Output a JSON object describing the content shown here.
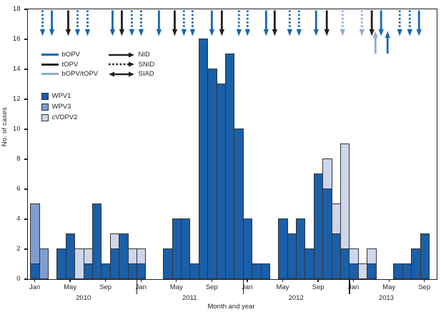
{
  "chart_data": {
    "type": "bar",
    "stacked": true,
    "xlabel": "Month and year",
    "ylabel": "No. of cases",
    "ylim": [
      0,
      18
    ],
    "ytick_interval": 2,
    "xtick_months": [
      "Jan",
      "May",
      "Sep"
    ],
    "years": [
      "2010",
      "2011",
      "2012",
      "2013"
    ],
    "series": [
      {
        "name": "WPV1",
        "key": "WPV1",
        "color": "#1a5fa8"
      },
      {
        "name": "WPV3",
        "key": "WPV3",
        "color": "#7f9dd1"
      },
      {
        "name": "cVDPV2",
        "key": "cVDPV2",
        "color": "#cdd6eb"
      }
    ],
    "values": [
      {
        "year": 2010,
        "month": "Jan",
        "WPV1": 1,
        "WPV3": 4,
        "cVDPV2": 0
      },
      {
        "year": 2010,
        "month": "Feb",
        "WPV1": 0,
        "WPV3": 2,
        "cVDPV2": 0
      },
      {
        "year": 2010,
        "month": "Mar",
        "WPV1": 0,
        "WPV3": 0,
        "cVDPV2": 0
      },
      {
        "year": 2010,
        "month": "Apr",
        "WPV1": 2,
        "WPV3": 0,
        "cVDPV2": 0
      },
      {
        "year": 2010,
        "month": "May",
        "WPV1": 3,
        "WPV3": 0,
        "cVDPV2": 0
      },
      {
        "year": 2010,
        "month": "Jun",
        "WPV1": 0,
        "WPV3": 0,
        "cVDPV2": 2
      },
      {
        "year": 2010,
        "month": "Jul",
        "WPV1": 1,
        "WPV3": 0,
        "cVDPV2": 1
      },
      {
        "year": 2010,
        "month": "Aug",
        "WPV1": 5,
        "WPV3": 0,
        "cVDPV2": 0
      },
      {
        "year": 2010,
        "month": "Sep",
        "WPV1": 1,
        "WPV3": 0,
        "cVDPV2": 0
      },
      {
        "year": 2010,
        "month": "Oct",
        "WPV1": 2,
        "WPV3": 0,
        "cVDPV2": 1
      },
      {
        "year": 2010,
        "month": "Nov",
        "WPV1": 3,
        "WPV3": 0,
        "cVDPV2": 0
      },
      {
        "year": 2010,
        "month": "Dec",
        "WPV1": 1,
        "WPV3": 0,
        "cVDPV2": 1
      },
      {
        "year": 2011,
        "month": "Jan",
        "WPV1": 1,
        "WPV3": 0,
        "cVDPV2": 1
      },
      {
        "year": 2011,
        "month": "Feb",
        "WPV1": 0,
        "WPV3": 0,
        "cVDPV2": 0
      },
      {
        "year": 2011,
        "month": "Mar",
        "WPV1": 0,
        "WPV3": 0,
        "cVDPV2": 0
      },
      {
        "year": 2011,
        "month": "Apr",
        "WPV1": 2,
        "WPV3": 0,
        "cVDPV2": 0
      },
      {
        "year": 2011,
        "month": "May",
        "WPV1": 4,
        "WPV3": 0,
        "cVDPV2": 0
      },
      {
        "year": 2011,
        "month": "Jun",
        "WPV1": 4,
        "WPV3": 0,
        "cVDPV2": 0
      },
      {
        "year": 2011,
        "month": "Jul",
        "WPV1": 1,
        "WPV3": 0,
        "cVDPV2": 0
      },
      {
        "year": 2011,
        "month": "Aug",
        "WPV1": 16,
        "WPV3": 0,
        "cVDPV2": 0
      },
      {
        "year": 2011,
        "month": "Sep",
        "WPV1": 14,
        "WPV3": 0,
        "cVDPV2": 0
      },
      {
        "year": 2011,
        "month": "Oct",
        "WPV1": 13,
        "WPV3": 0,
        "cVDPV2": 0
      },
      {
        "year": 2011,
        "month": "Nov",
        "WPV1": 15,
        "WPV3": 0,
        "cVDPV2": 0
      },
      {
        "year": 2011,
        "month": "Dec",
        "WPV1": 10,
        "WPV3": 0,
        "cVDPV2": 0
      },
      {
        "year": 2012,
        "month": "Jan",
        "WPV1": 4,
        "WPV3": 0,
        "cVDPV2": 0
      },
      {
        "year": 2012,
        "month": "Feb",
        "WPV1": 1,
        "WPV3": 0,
        "cVDPV2": 0
      },
      {
        "year": 2012,
        "month": "Mar",
        "WPV1": 1,
        "WPV3": 0,
        "cVDPV2": 0
      },
      {
        "year": 2012,
        "month": "Apr",
        "WPV1": 0,
        "WPV3": 0,
        "cVDPV2": 0
      },
      {
        "year": 2012,
        "month": "May",
        "WPV1": 4,
        "WPV3": 0,
        "cVDPV2": 0
      },
      {
        "year": 2012,
        "month": "Jun",
        "WPV1": 3,
        "WPV3": 0,
        "cVDPV2": 0
      },
      {
        "year": 2012,
        "month": "Jul",
        "WPV1": 4,
        "WPV3": 0,
        "cVDPV2": 0
      },
      {
        "year": 2012,
        "month": "Aug",
        "WPV1": 2,
        "WPV3": 0,
        "cVDPV2": 0
      },
      {
        "year": 2012,
        "month": "Sep",
        "WPV1": 7,
        "WPV3": 0,
        "cVDPV2": 0
      },
      {
        "year": 2012,
        "month": "Oct",
        "WPV1": 6,
        "WPV3": 0,
        "cVDPV2": 2
      },
      {
        "year": 2012,
        "month": "Nov",
        "WPV1": 3,
        "WPV3": 0,
        "cVDPV2": 2
      },
      {
        "year": 2012,
        "month": "Dec",
        "WPV1": 2,
        "WPV3": 0,
        "cVDPV2": 7
      },
      {
        "year": 2013,
        "month": "Jan",
        "WPV1": 1,
        "WPV3": 0,
        "cVDPV2": 1
      },
      {
        "year": 2013,
        "month": "Feb",
        "WPV1": 0,
        "WPV3": 0,
        "cVDPV2": 1
      },
      {
        "year": 2013,
        "month": "Mar",
        "WPV1": 1,
        "WPV3": 0,
        "cVDPV2": 1
      },
      {
        "year": 2013,
        "month": "Apr",
        "WPV1": 0,
        "WPV3": 0,
        "cVDPV2": 0
      },
      {
        "year": 2013,
        "month": "May",
        "WPV1": 0,
        "WPV3": 0,
        "cVDPV2": 0
      },
      {
        "year": 2013,
        "month": "Jun",
        "WPV1": 1,
        "WPV3": 0,
        "cVDPV2": 0
      },
      {
        "year": 2013,
        "month": "Jul",
        "WPV1": 1,
        "WPV3": 0,
        "cVDPV2": 0
      },
      {
        "year": 2013,
        "month": "Aug",
        "WPV1": 2,
        "WPV3": 0,
        "cVDPV2": 0
      },
      {
        "year": 2013,
        "month": "Sep",
        "WPV1": 3,
        "WPV3": 0,
        "cVDPV2": 0
      }
    ],
    "campaign_legend": {
      "vaccines": [
        {
          "label": "bOPV",
          "color": "#1668b2"
        },
        {
          "label": "tOPV",
          "color": "#231f20"
        },
        {
          "label": "bOPV/tOPV",
          "color": "#93aad8"
        }
      ],
      "types": [
        {
          "label": "NID",
          "style": "solid"
        },
        {
          "label": "SNID",
          "style": "dashed"
        },
        {
          "label": "SIAD",
          "style": "double"
        }
      ]
    },
    "campaign_arrows": [
      {
        "m": 1.35,
        "vaccine": "bOPV",
        "type": "SNID",
        "dir": "down"
      },
      {
        "m": 2.4,
        "vaccine": "bOPV",
        "type": "NID",
        "dir": "down"
      },
      {
        "m": 4.25,
        "vaccine": "tOPV",
        "type": "NID",
        "dir": "down"
      },
      {
        "m": 5.3,
        "vaccine": "bOPV",
        "type": "SNID",
        "dir": "down"
      },
      {
        "m": 6.43,
        "vaccine": "bOPV",
        "type": "SNID",
        "dir": "down"
      },
      {
        "m": 9.25,
        "vaccine": "bOPV",
        "type": "NID",
        "dir": "down"
      },
      {
        "m": 10.3,
        "vaccine": "tOPV",
        "type": "NID",
        "dir": "down"
      },
      {
        "m": 11.43,
        "vaccine": "bOPV",
        "type": "SNID",
        "dir": "down"
      },
      {
        "m": 12.48,
        "vaccine": "bOPV",
        "type": "SNID",
        "dir": "down"
      },
      {
        "m": 14.49,
        "vaccine": "bOPV",
        "type": "NID",
        "dir": "down"
      },
      {
        "m": 16.27,
        "vaccine": "tOPV",
        "type": "NID",
        "dir": "down"
      },
      {
        "m": 17.31,
        "vaccine": "bOPV",
        "type": "SNID",
        "dir": "down"
      },
      {
        "m": 18.28,
        "vaccine": "bOPV",
        "type": "SNID",
        "dir": "down"
      },
      {
        "m": 20.46,
        "vaccine": "bOPV",
        "type": "NID",
        "dir": "down"
      },
      {
        "m": 21.59,
        "vaccine": "tOPV",
        "type": "NID",
        "dir": "down"
      },
      {
        "m": 23.52,
        "vaccine": "bOPV",
        "type": "SNID",
        "dir": "down"
      },
      {
        "m": 24.49,
        "vaccine": "bOPV",
        "type": "SNID",
        "dir": "down"
      },
      {
        "m": 26.59,
        "vaccine": "bOPV",
        "type": "NID",
        "dir": "down"
      },
      {
        "m": 27.56,
        "vaccine": "tOPV",
        "type": "NID",
        "dir": "down"
      },
      {
        "m": 29.25,
        "vaccine": "bOPV",
        "type": "SNID",
        "dir": "down"
      },
      {
        "m": 30.3,
        "vaccine": "bOPV",
        "type": "SNID",
        "dir": "down"
      },
      {
        "m": 32.23,
        "vaccine": "bOPV",
        "type": "NID",
        "dir": "down"
      },
      {
        "m": 33.44,
        "vaccine": "tOPV",
        "type": "NID",
        "dir": "down"
      },
      {
        "m": 35.22,
        "vaccine": "bOPV/tOPV",
        "type": "SNID",
        "dir": "down"
      },
      {
        "m": 37.4,
        "vaccine": "bOPV/tOPV",
        "type": "SNID",
        "dir": "down"
      },
      {
        "m": 38.52,
        "vaccine": "tOPV",
        "type": "NID",
        "dir": "down"
      },
      {
        "m": 38.93,
        "vaccine": "bOPV/tOPV",
        "type": "SIAD",
        "dir": "up"
      },
      {
        "m": 39.57,
        "vaccine": "bOPV",
        "type": "NID",
        "dir": "down"
      },
      {
        "m": 40.3,
        "vaccine": "bOPV",
        "type": "SIAD",
        "dir": "up"
      },
      {
        "m": 41.67,
        "vaccine": "bOPV",
        "type": "SNID",
        "dir": "down"
      },
      {
        "m": 42.8,
        "vaccine": "bOPV",
        "type": "SNID",
        "dir": "down"
      },
      {
        "m": 43.85,
        "vaccine": "bOPV",
        "type": "NID",
        "dir": "down"
      }
    ],
    "axis_color": "#231f20",
    "bar_border_color": "#333333"
  }
}
